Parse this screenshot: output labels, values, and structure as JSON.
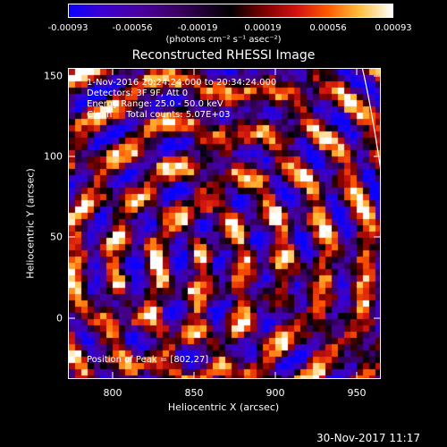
{
  "colorbar": {
    "ticks": [
      "-0.00093",
      "-0.00056",
      "-0.00019",
      "0.00019",
      "0.00056",
      "0.00093"
    ],
    "units": "(photons cm⁻² s⁻¹ asec⁻²)"
  },
  "title": "Reconstructed RHESSI Image",
  "annotations": {
    "time": "1-Nov-2016 20:24:24.000 to 20:34:24.000",
    "detectors": "Detectors: 3F 9F, Att 0",
    "energy": "Energy Range: 25.0 - 50.0 keV",
    "method": "Clean     Total counts: 5.07E+03",
    "peak": "Position of Peak = [802,27]"
  },
  "axes": {
    "xlabel": "Heliocentric X (arcsec)",
    "ylabel": "Heliocentric Y (arcsec)",
    "xticks": [
      "800",
      "850",
      "900",
      "950"
    ],
    "yticks": [
      "150",
      "100",
      "50",
      "0"
    ],
    "xrange": [
      770,
      963
    ],
    "yrange": [
      -38,
      155
    ]
  },
  "footer": "30-Nov-2017 11:17"
}
